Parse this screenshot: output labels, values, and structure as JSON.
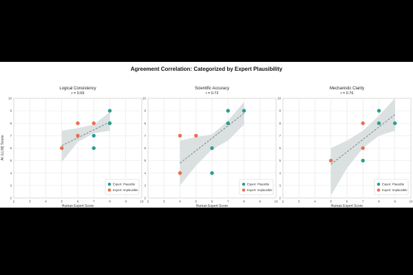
{
  "figure": {
    "suptitle": "Agreement Correlation: Categorized by Expert Plausibility",
    "ylabel": "AI (LLM) Score",
    "legend_plausible": "Expert: Plausible",
    "legend_implausible": "Expert: Implausible",
    "colors": {
      "plausible": "#2a9d8f",
      "implausible": "#e76f51",
      "band": "#d5dadc",
      "trend": "#6c7a80"
    }
  },
  "chart_data": [
    {
      "type": "scatter",
      "title": "Logical Consistency",
      "r_label": "r = 0.69",
      "xlabel": "Human Expert Score",
      "ylabel": "AI (LLM) Score",
      "xlim": [
        2,
        10
      ],
      "ylim": [
        2,
        10
      ],
      "xticks": [
        "2",
        "3",
        "4",
        "5",
        "6",
        "7",
        "8",
        "9",
        "10"
      ],
      "yticks": [
        "2",
        "3",
        "4",
        "5",
        "6",
        "7",
        "8",
        "9",
        "10"
      ],
      "legend_position": "lower-right",
      "plausible": [
        [
          8,
          9
        ],
        [
          8,
          8
        ],
        [
          7,
          7
        ],
        [
          7,
          6
        ]
      ],
      "implausible": [
        [
          5,
          6
        ],
        [
          6,
          8
        ],
        [
          6,
          7
        ],
        [
          7,
          8
        ]
      ],
      "trend": [
        [
          5,
          6.2
        ],
        [
          8,
          8.1
        ]
      ],
      "band_upper": [
        [
          5,
          7.4
        ],
        [
          6,
          7.6
        ],
        [
          7,
          7.9
        ],
        [
          8,
          8.9
        ]
      ],
      "band_lower": [
        [
          5,
          4.9
        ],
        [
          6,
          6.5
        ],
        [
          7,
          7.2
        ],
        [
          8,
          7.4
        ]
      ]
    },
    {
      "type": "scatter",
      "title": "Scientific Accuracy",
      "r_label": "r = 0.72",
      "xlabel": "Human Expert Score",
      "ylabel": "AI (LLM) Score",
      "xlim": [
        2,
        10
      ],
      "ylim": [
        2,
        10
      ],
      "xticks": [
        "2",
        "3",
        "4",
        "5",
        "6",
        "7",
        "8",
        "9",
        "10"
      ],
      "yticks": [
        "2",
        "3",
        "4",
        "5",
        "6",
        "7",
        "8",
        "9",
        "10"
      ],
      "legend_position": "lower-right",
      "plausible": [
        [
          8,
          9
        ],
        [
          7,
          9
        ],
        [
          7,
          8
        ],
        [
          6,
          6
        ],
        [
          6,
          4
        ]
      ],
      "implausible": [
        [
          4,
          7
        ],
        [
          5,
          7
        ],
        [
          4,
          4
        ]
      ],
      "trend": [
        [
          4,
          4.8
        ],
        [
          8,
          8.8
        ]
      ],
      "band_upper": [
        [
          4,
          6.6
        ],
        [
          5,
          6.9
        ],
        [
          6,
          7.1
        ],
        [
          7,
          8.2
        ],
        [
          8,
          9.7
        ]
      ],
      "band_lower": [
        [
          4,
          3.0
        ],
        [
          5,
          4.6
        ],
        [
          6,
          5.9
        ],
        [
          7,
          6.6
        ],
        [
          8,
          7.9
        ]
      ]
    },
    {
      "type": "scatter",
      "title": "Mechanistic Clarity",
      "r_label": "r = 0.76",
      "xlabel": "Human Expert Score",
      "ylabel": "AI (LLM) Score",
      "xlim": [
        2,
        10
      ],
      "ylim": [
        2,
        10
      ],
      "xticks": [
        "2",
        "3",
        "4",
        "5",
        "6",
        "7",
        "8",
        "9",
        "10"
      ],
      "yticks": [
        "2",
        "3",
        "4",
        "5",
        "6",
        "7",
        "8",
        "9",
        "10"
      ],
      "legend_position": "lower-right",
      "plausible": [
        [
          8,
          9
        ],
        [
          8,
          8
        ],
        [
          9,
          8
        ],
        [
          7,
          5
        ]
      ],
      "implausible": [
        [
          5,
          5
        ],
        [
          7,
          8
        ],
        [
          7,
          6
        ]
      ],
      "trend": [
        [
          5,
          4.7
        ],
        [
          9,
          8.7
        ]
      ],
      "band_upper": [
        [
          5,
          6.0
        ],
        [
          6,
          6.6
        ],
        [
          7,
          7.4
        ],
        [
          8,
          8.6
        ],
        [
          9,
          10.0
        ]
      ],
      "band_lower": [
        [
          5,
          2.2
        ],
        [
          6,
          4.4
        ],
        [
          7,
          6.0
        ],
        [
          8,
          7.0
        ],
        [
          9,
          7.4
        ]
      ]
    }
  ]
}
